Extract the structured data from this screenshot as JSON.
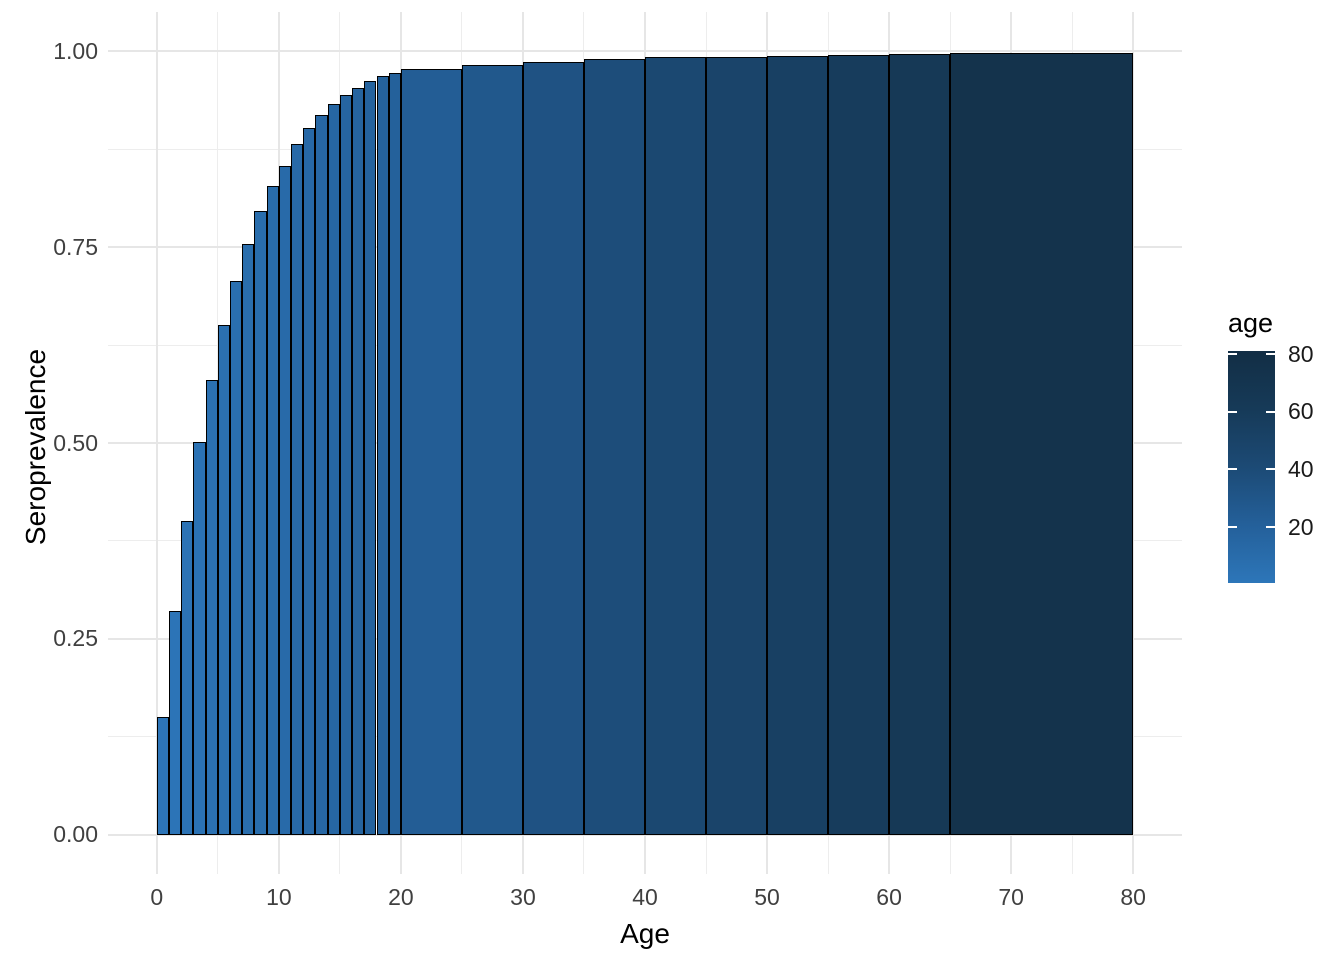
{
  "colors": {
    "background": "#ffffff",
    "grid_major": "#e6e6e6",
    "grid_minor": "#ededed",
    "bar_outline": "#000000",
    "axis_text": "#404040",
    "axis_title": "#000000",
    "fill_low": "#2d76b9",
    "fill_high": "#122e45"
  },
  "chart_data": {
    "type": "bar",
    "title": "",
    "xlabel": "Age",
    "ylabel": "Seroprevalence",
    "xlim": [
      -4,
      84
    ],
    "ylim": [
      -0.05,
      1.05
    ],
    "grid": "on",
    "x_major_ticks": [
      0,
      10,
      20,
      30,
      40,
      50,
      60,
      70,
      80
    ],
    "x_minor_ticks": [
      5,
      15,
      25,
      35,
      45,
      55,
      65,
      75
    ],
    "y_major_ticks": [
      {
        "value": 0.0,
        "label": "0.00"
      },
      {
        "value": 0.25,
        "label": "0.25"
      },
      {
        "value": 0.5,
        "label": "0.50"
      },
      {
        "value": 0.75,
        "label": "0.75"
      },
      {
        "value": 1.0,
        "label": "1.00"
      }
    ],
    "y_minor_ticks": [
      0.125,
      0.375,
      0.625,
      0.875
    ],
    "fill_scale": {
      "variable": "age",
      "stop_ages": [
        0,
        20,
        40,
        60,
        80
      ],
      "stop_colors": [
        "#2d76b9",
        "#24609a",
        "#1c4a75",
        "#163a58",
        "#122e45"
      ]
    },
    "bars": [
      {
        "from": 0,
        "to": 1,
        "value": 0.15
      },
      {
        "from": 1,
        "to": 2,
        "value": 0.286
      },
      {
        "from": 2,
        "to": 3,
        "value": 0.401
      },
      {
        "from": 3,
        "to": 4,
        "value": 0.501
      },
      {
        "from": 4,
        "to": 5,
        "value": 0.581
      },
      {
        "from": 5,
        "to": 6,
        "value": 0.65
      },
      {
        "from": 6,
        "to": 7,
        "value": 0.707
      },
      {
        "from": 7,
        "to": 8,
        "value": 0.754
      },
      {
        "from": 8,
        "to": 9,
        "value": 0.796
      },
      {
        "from": 9,
        "to": 10,
        "value": 0.828
      },
      {
        "from": 10,
        "to": 11,
        "value": 0.854
      },
      {
        "from": 11,
        "to": 12,
        "value": 0.881
      },
      {
        "from": 12,
        "to": 13,
        "value": 0.902
      },
      {
        "from": 13,
        "to": 14,
        "value": 0.918
      },
      {
        "from": 14,
        "to": 15,
        "value": 0.932
      },
      {
        "from": 15,
        "to": 16,
        "value": 0.944
      },
      {
        "from": 16,
        "to": 17,
        "value": 0.953
      },
      {
        "from": 17,
        "to": 18,
        "value": 0.962
      },
      {
        "from": 18,
        "to": 19,
        "value": 0.968
      },
      {
        "from": 19,
        "to": 20,
        "value": 0.972
      },
      {
        "from": 20,
        "to": 25,
        "value": 0.977
      },
      {
        "from": 25,
        "to": 30,
        "value": 0.982
      },
      {
        "from": 30,
        "to": 35,
        "value": 0.986
      },
      {
        "from": 35,
        "to": 40,
        "value": 0.99
      },
      {
        "from": 40,
        "to": 45,
        "value": 0.992
      },
      {
        "from": 45,
        "to": 50,
        "value": 0.993
      },
      {
        "from": 50,
        "to": 55,
        "value": 0.994
      },
      {
        "from": 55,
        "to": 60,
        "value": 0.995
      },
      {
        "from": 60,
        "to": 65,
        "value": 0.996
      },
      {
        "from": 65,
        "to": 80,
        "value": 0.998
      }
    ],
    "legend": {
      "title": "age",
      "position": "right",
      "ticks": [
        {
          "value": 80,
          "label": "80"
        },
        {
          "value": 60,
          "label": "60"
        },
        {
          "value": 40,
          "label": "40"
        },
        {
          "value": 20,
          "label": "20"
        }
      ],
      "range": [
        0.5,
        80
      ]
    }
  }
}
